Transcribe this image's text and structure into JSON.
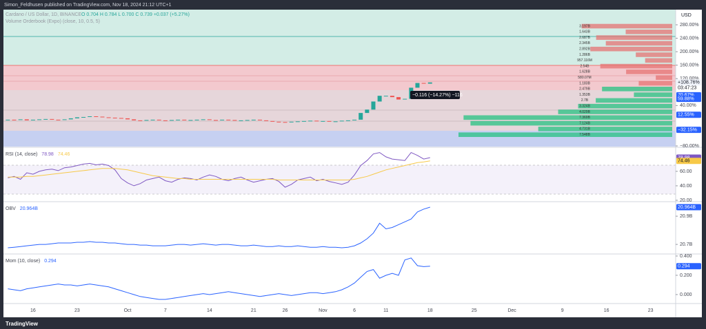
{
  "header": {
    "publisher": "Simon_Feldhusen published on TradingView.com, Nov 18, 2024 21:12 UTC+1"
  },
  "footer": {
    "brand": "TradingView"
  },
  "chart_data": [
    {
      "type": "candlestick",
      "title": "Cardano / US Dollar, 1D, BINANCE",
      "ohlc_legend": "O 0.704 H 0.784 L 0.700 C 0.739 +0.037 (+5.27%)",
      "indicator": "Volume Orderbook (Expo) (close, 10, 0.5, 5)",
      "currency": "USD",
      "categories": [
        null,
        null,
        null,
        null,
        "16",
        null,
        null,
        null,
        null,
        null,
        null,
        "23",
        null,
        null,
        null,
        null,
        null,
        null,
        null,
        "Oct",
        null,
        null,
        null,
        null,
        null,
        "7",
        null,
        null,
        null,
        null,
        null,
        null,
        "14",
        null,
        null,
        null,
        null,
        null,
        null,
        "21",
        null,
        null,
        null,
        null,
        "26",
        null,
        null,
        null,
        null,
        null,
        "Nov",
        null,
        null,
        null,
        null,
        "6",
        null,
        null,
        null,
        null,
        "11",
        null,
        null,
        null,
        null,
        null,
        null,
        "18",
        null,
        null,
        null,
        null,
        null,
        null,
        "25",
        null,
        null,
        null,
        null,
        null,
        "Dec",
        null,
        null,
        null,
        null,
        null,
        null,
        null,
        "9",
        null,
        null,
        null,
        null,
        null,
        null,
        "16",
        null,
        null,
        null,
        null,
        null,
        null,
        "23",
        null,
        null,
        null
      ],
      "values": [
        -2,
        -3,
        -1,
        -4,
        -2,
        -1,
        0,
        -2,
        -3,
        -1,
        2,
        5,
        6,
        8,
        7,
        5,
        4,
        3,
        2,
        -1,
        -4,
        -5,
        -3,
        -2,
        -4,
        -5,
        -3,
        -2,
        -4,
        -3,
        -2,
        -1,
        -3,
        -4,
        -2,
        -3,
        -5,
        -4,
        -3,
        -2,
        -4,
        -6,
        -8,
        -9,
        -10,
        -8,
        -7,
        -6,
        -5,
        -7,
        -6,
        -8,
        -7,
        -5,
        -4,
        -2,
        18,
        28,
        52,
        69,
        69,
        65,
        58,
        60,
        93,
        107,
        105,
        108.76,
        null,
        null,
        null,
        null,
        null,
        null,
        null,
        null,
        null,
        null,
        null,
        null,
        null,
        null,
        null,
        null,
        null,
        null,
        null,
        null,
        null,
        null,
        null,
        null,
        null,
        null,
        null,
        null,
        null,
        null,
        null,
        null,
        null,
        null,
        null,
        null,
        null,
        null
      ],
      "up_color": "#26a69a",
      "down_color": "#ef5350",
      "ylim": [
        -82,
        325
      ],
      "yticks": [
        {
          "value": 280,
          "label": "280.00%"
        },
        {
          "value": 240,
          "label": "240.00%"
        },
        {
          "value": 200,
          "label": "200.00%"
        },
        {
          "value": 160,
          "label": "160.00%"
        },
        {
          "value": 120,
          "label": "120.00%"
        },
        {
          "value": 40,
          "label": "40.00%"
        },
        {
          "value": -80,
          "label": "−80.00%"
        }
      ],
      "price_labels": [
        {
          "value": 108.76,
          "label": "+108.76%",
          "color": "#f0f3fa",
          "text_color": "#131722"
        },
        {
          "value": 70.67,
          "label": "70.67%",
          "color": "#2962ff",
          "text_color": "#ffffff"
        },
        {
          "value": 59.88,
          "label": "59.88%",
          "color": "#2962ff",
          "text_color": "#ffffff"
        },
        {
          "value": 12.55,
          "label": "12.55%",
          "color": "#2962ff",
          "text_color": "#ffffff"
        },
        {
          "value": -32.15,
          "label": "−32.15%",
          "color": "#2962ff",
          "text_color": "#ffffff"
        }
      ],
      "countdown": "03:47:23",
      "measure_label": "−0.116 (−14.27%) −116",
      "volume_profile": {
        "labels": [
          "3.197B",
          "1.643B",
          "2.687B",
          "2.345B",
          "2.892B",
          "1.286B",
          "957.116M",
          "2.54B",
          "1.628B",
          "580.07M",
          "1.183B",
          "2.479B",
          "1.353B",
          "2.7B",
          "3.324B",
          "4.029B",
          "7.369B",
          "7.124B",
          "4.731B",
          "7.548B"
        ],
        "values": [
          3.197,
          1.643,
          2.687,
          2.345,
          2.892,
          1.286,
          0.957116,
          2.54,
          1.628,
          0.58007,
          1.183,
          2.479,
          1.353,
          2.7,
          3.324,
          4.029,
          7.369,
          7.124,
          4.731,
          7.548
        ],
        "colors": [
          "#e57373",
          "#e57373",
          "#e57373",
          "#e57373",
          "#e57373",
          "#e57373",
          "#e57373",
          "#e57373",
          "#e57373",
          "#e57373",
          "#e57373",
          "#26c281",
          "#26c281",
          "#26c281",
          "#26c281",
          "#26c281",
          "#26c281",
          "#26c281",
          "#26c281",
          "#26c281"
        ]
      }
    },
    {
      "type": "line",
      "title": "RSI (14, close)",
      "series": [
        {
          "color": "#7e57c2",
          "label_color": "#ffffff",
          "values": [
            51,
            53,
            49,
            58,
            56,
            60,
            62,
            63,
            61,
            65,
            66,
            68,
            70,
            71,
            69,
            70,
            68,
            62,
            50,
            44,
            40,
            43,
            48,
            50,
            52,
            47,
            45,
            49,
            51,
            50,
            48,
            52,
            55,
            53,
            49,
            47,
            50,
            52,
            48,
            45,
            47,
            49,
            50,
            46,
            38,
            42,
            48,
            50,
            52,
            47,
            49,
            46,
            44,
            42,
            45,
            55,
            68,
            75,
            84,
            86,
            80,
            77,
            76,
            75,
            86,
            82,
            77,
            78.98,
            null,
            null,
            null,
            null,
            null,
            null,
            null,
            null,
            null,
            null,
            null,
            null,
            null,
            null,
            null,
            null,
            null,
            null,
            null,
            null,
            null,
            null,
            null,
            null,
            null,
            null,
            null,
            null,
            null,
            null,
            null,
            null,
            null,
            null,
            null,
            null,
            null,
            null
          ]
        },
        {
          "color": "#f7c948",
          "label_color": "#131722",
          "values": [
            52,
            52,
            52,
            53,
            53,
            54,
            55,
            56,
            57,
            58,
            59,
            60,
            61,
            62,
            63,
            64,
            64,
            64,
            63,
            62,
            60,
            58,
            56,
            54,
            53,
            52,
            51,
            50,
            50,
            49,
            49,
            49,
            49,
            49,
            49,
            49,
            49,
            49,
            49,
            49,
            49,
            49,
            49,
            48,
            48,
            48,
            48,
            48,
            48,
            48,
            48,
            48,
            48,
            48,
            48,
            49,
            51,
            53,
            56,
            59,
            62,
            64,
            66,
            68,
            70,
            72,
            73,
            74.46,
            null,
            null,
            null,
            null,
            null,
            null,
            null,
            null,
            null,
            null,
            null,
            null,
            null,
            null,
            null,
            null,
            null,
            null,
            null,
            null,
            null,
            null,
            null,
            null,
            null,
            null,
            null,
            null,
            null,
            null,
            null,
            null,
            null,
            null,
            null,
            null,
            null,
            null
          ]
        }
      ],
      "ylim": [
        19,
        92.3
      ],
      "yticks": [
        {
          "value": 60,
          "label": "60.00"
        },
        {
          "value": 40,
          "label": "40.00"
        },
        {
          "value": 20,
          "label": "20.00"
        }
      ]
    },
    {
      "type": "line",
      "title": "OBV",
      "series": [
        {
          "color": "#2962ff",
          "label_color": "#ffffff",
          "value_label": "20.964B",
          "values": [
            20.676,
            20.68,
            20.685,
            20.69,
            20.695,
            20.7,
            20.7,
            20.705,
            20.71,
            20.71,
            20.71,
            20.715,
            20.715,
            20.72,
            20.715,
            20.715,
            20.71,
            20.71,
            20.705,
            20.7,
            20.7,
            20.695,
            20.695,
            20.69,
            20.69,
            20.69,
            20.695,
            20.7,
            20.7,
            20.695,
            20.7,
            20.705,
            20.7,
            20.695,
            20.7,
            20.7,
            20.695,
            20.69,
            20.69,
            20.695,
            20.69,
            20.685,
            20.685,
            20.69,
            20.685,
            20.685,
            20.69,
            20.685,
            20.68,
            20.68,
            20.685,
            20.68,
            20.68,
            20.676,
            20.68,
            20.69,
            20.71,
            20.74,
            20.78,
            20.85,
            20.81,
            20.82,
            20.84,
            20.86,
            20.88,
            20.93,
            20.95,
            20.964,
            null,
            null,
            null,
            null,
            null,
            null,
            null,
            null,
            null,
            null,
            null,
            null,
            null,
            null,
            null,
            null,
            null,
            null,
            null,
            null,
            null,
            null,
            null,
            null,
            null,
            null,
            null,
            null,
            null,
            null,
            null,
            null,
            null,
            null,
            null,
            null,
            null,
            null
          ]
        }
      ],
      "ylim": [
        20.637,
        20.998
      ],
      "yticks": [
        {
          "value": 20.9,
          "label": "20.9B"
        },
        {
          "value": 20.7,
          "label": "20.7B"
        }
      ]
    },
    {
      "type": "line",
      "title": "Mom (10, close)",
      "series": [
        {
          "color": "#2962ff",
          "label_color": "#ffffff",
          "values": [
            0.06,
            0.05,
            0.04,
            0.06,
            0.07,
            0.08,
            0.09,
            0.1,
            0.11,
            0.1,
            0.1,
            0.09,
            0.1,
            0.11,
            0.1,
            0.09,
            0.08,
            0.06,
            0.04,
            0.02,
            0,
            -0.02,
            -0.03,
            -0.04,
            -0.05,
            -0.05,
            -0.04,
            -0.03,
            -0.02,
            -0.01,
            0,
            0.01,
            0,
            0.01,
            0.02,
            0.03,
            0.02,
            0.01,
            0,
            -0.01,
            -0.02,
            -0.01,
            0,
            0.01,
            0,
            -0.01,
            0,
            0.01,
            0.02,
            0.02,
            0.01,
            0.02,
            0.03,
            0.05,
            0.08,
            0.12,
            0.18,
            0.24,
            0.26,
            0.17,
            0.2,
            0.22,
            0.2,
            0.36,
            0.38,
            0.3,
            0.29,
            0.294,
            null,
            null,
            null,
            null,
            null,
            null,
            null,
            null,
            null,
            null,
            null,
            null,
            null,
            null,
            null,
            null,
            null,
            null,
            null,
            null,
            null,
            null,
            null,
            null,
            null,
            null,
            null,
            null,
            null,
            null,
            null,
            null,
            null,
            null,
            null,
            null,
            null,
            null
          ]
        }
      ],
      "ylim": [
        -0.086,
        0.414
      ],
      "yticks": [
        {
          "value": 0.4,
          "label": "0.400"
        },
        {
          "value": 0.2,
          "label": "0.200"
        },
        {
          "value": 0,
          "label": "0.000"
        }
      ]
    }
  ]
}
